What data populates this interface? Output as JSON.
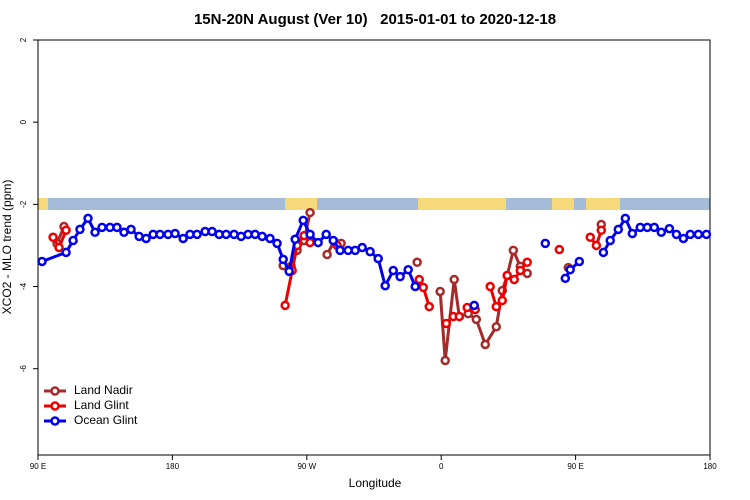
{
  "chart_data": {
    "type": "line",
    "title": "15N-20N August (Ver 10)   2015-01-01 to 2020-12-18",
    "x_label": "Longitude",
    "y_label": "XCO2 - MLO trend (ppm)",
    "xlim": [
      90,
      540
    ],
    "xticks": [
      {
        "value": 90,
        "label": "90 E"
      },
      180,
      {
        "value": 270,
        "label": "90 W"
      },
      {
        "value": 360,
        "label": "0"
      },
      {
        "value": 450,
        "label": "90 E"
      },
      {
        "value": 540,
        "label": "180"
      }
    ],
    "ylim": [
      -8.1,
      2
    ],
    "yticks": [
      2,
      0,
      -2,
      -4,
      -6
    ],
    "legend": "bottom-left",
    "series": [
      {
        "name": "Land Nadir",
        "color": "#a52a2a",
        "x": [
          102.7,
          107.4,
          null,
          254.2,
          259.5,
          263.5,
          268.2,
          272.2,
          null,
          283.6,
          288.3,
          293.0,
          null,
          343.9,
          null,
          359.3,
          362.7,
          368.7,
          372.1,
          378.1,
          383.5,
          389.5,
          396.9,
          400.9,
          404.2,
          408.3,
          413.0,
          417.6,
          null,
          445.1,
          null,
          467.2
        ],
        "values": [
          -2.95,
          -2.54,
          null,
          -3.49,
          -3.51,
          -3.12,
          -2.88,
          -2.2,
          null,
          -3.22,
          -2.9,
          -2.95,
          null,
          -3.41,
          null,
          -4.12,
          -5.8,
          -3.83,
          -4.73,
          -4.66,
          -4.8,
          -5.41,
          -4.98,
          -4.1,
          -3.73,
          -3.12,
          -3.51,
          -3.68,
          null,
          -3.54,
          null,
          -2.49
        ]
      },
      {
        "name": "Land Glint",
        "color": "#ee0000",
        "x": [
          100.1,
          104.1,
          108.8,
          null,
          255.5,
          260.2,
          263.5,
          268.2,
          272.2,
          null,
          290.3,
          null,
          345.3,
          348.0,
          352.0,
          null,
          363.4,
          368.1,
          372.1,
          null,
          377.4,
          382.8,
          null,
          392.8,
          396.9,
          400.9,
          404.2,
          408.9,
          413.0,
          417.6,
          null,
          439.1,
          null,
          459.8,
          463.9,
          467.2
        ],
        "values": [
          -2.8,
          -3.05,
          -2.63,
          null,
          -4.46,
          -3.61,
          -3.0,
          -2.76,
          -2.93,
          null,
          -3.0,
          null,
          -3.83,
          -4.02,
          -4.49,
          null,
          -4.9,
          -4.73,
          -4.73,
          null,
          -4.51,
          -4.56,
          null,
          -4.0,
          -4.49,
          -4.34,
          -3.73,
          -3.83,
          -3.61,
          -3.41,
          null,
          -3.1,
          null,
          -2.8,
          -3.0,
          -2.63
        ]
      },
      {
        "name": "Ocean Glint",
        "color": "#0000ee",
        "x": [
          92.7,
          108.8,
          113.5,
          118.1,
          123.5,
          128.2,
          132.9,
          138.2,
          142.9,
          147.6,
          152.3,
          157.7,
          162.4,
          167.1,
          171.7,
          177.1,
          181.8,
          187.2,
          191.8,
          196.5,
          201.9,
          206.6,
          211.3,
          216.0,
          221.3,
          226.0,
          230.7,
          235.4,
          240.1,
          245.4,
          250.1,
          254.2,
          258.2,
          262.2,
          267.6,
          272.2,
          277.6,
          283.0,
          287.7,
          292.3,
          297.7,
          302.4,
          307.1,
          312.4,
          317.8,
          322.5,
          327.9,
          332.5,
          337.9,
          342.6,
          null,
          382.1,
          null,
          429.7,
          null,
          443.1,
          446.4,
          452.5,
          null,
          468.6,
          473.2,
          478.6,
          483.3,
          488.0,
          493.3,
          498.0,
          502.7,
          507.4,
          512.8,
          517.5,
          522.2,
          526.8,
          532.2,
          537.6
        ],
        "values": [
          -3.39,
          -3.17,
          -2.88,
          -2.61,
          -2.34,
          -2.68,
          -2.56,
          -2.56,
          -2.56,
          -2.68,
          -2.61,
          -2.78,
          -2.83,
          -2.73,
          -2.73,
          -2.73,
          -2.71,
          -2.83,
          -2.73,
          -2.73,
          -2.66,
          -2.66,
          -2.73,
          -2.73,
          -2.73,
          -2.78,
          -2.73,
          -2.73,
          -2.78,
          -2.83,
          -2.95,
          -3.34,
          -3.63,
          -2.85,
          -2.39,
          -2.73,
          -2.93,
          -2.73,
          -2.88,
          -3.12,
          -3.12,
          -3.12,
          -3.05,
          -3.15,
          -3.32,
          -3.98,
          -3.61,
          -3.76,
          -3.59,
          -4.0,
          null,
          -4.46,
          null,
          -2.95,
          null,
          -3.8,
          -3.59,
          -3.39,
          null,
          -3.17,
          -2.88,
          -2.61,
          -2.34,
          -2.71,
          -2.56,
          -2.56,
          -2.56,
          -2.68,
          -2.59,
          -2.73,
          -2.83,
          -2.73,
          -2.73,
          -2.73
        ]
      }
    ]
  }
}
